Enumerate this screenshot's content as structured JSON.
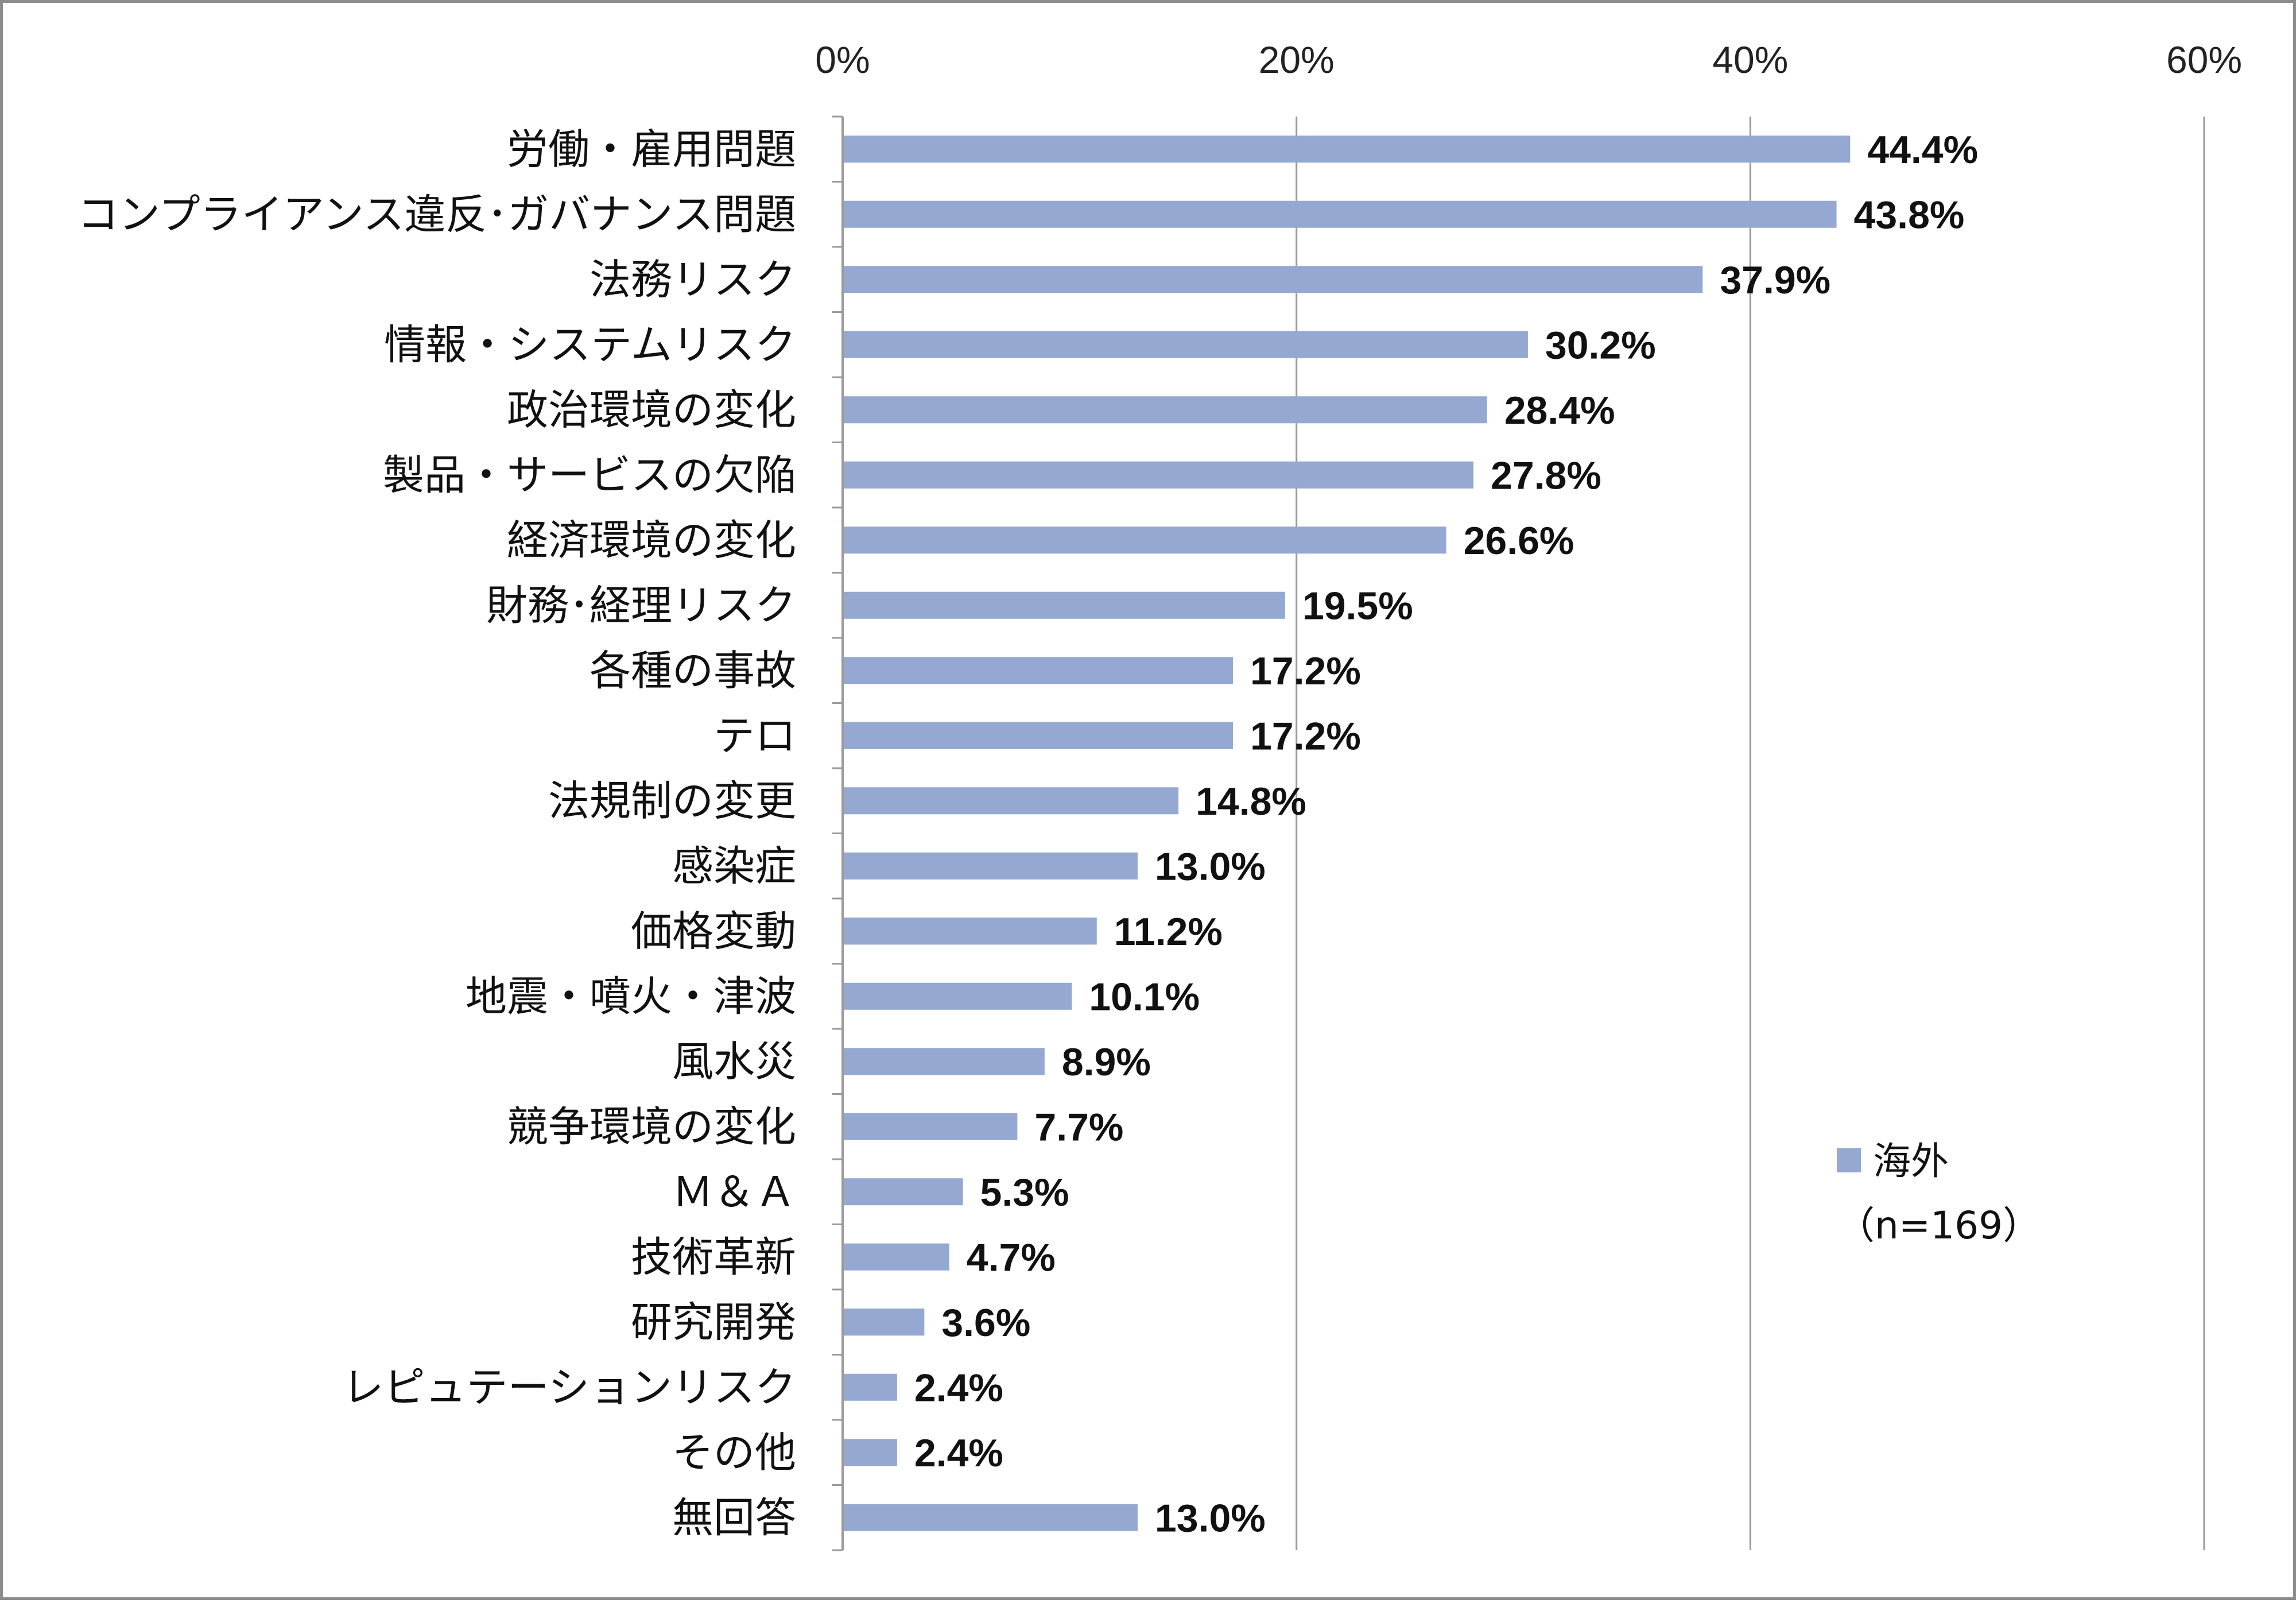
{
  "chart_data": {
    "type": "bar",
    "orientation": "horizontal",
    "categories": [
      "労働・雇用問題",
      "コンプライアンス違反･ガバナンス問題",
      "法務リスク",
      "情報・システムリスク",
      "政治環境の変化",
      "製品・サービスの欠陥",
      "経済環境の変化",
      "財務･経理リスク",
      "各種の事故",
      "テロ",
      "法規制の変更",
      "感染症",
      "価格変動",
      "地震・噴火・津波",
      "風水災",
      "競争環境の変化",
      "Ｍ＆Ａ",
      "技術革新",
      "研究開発",
      "レピュテーションリスク",
      "その他",
      "無回答"
    ],
    "series": [
      {
        "name": "海外",
        "color": "#94a8d2",
        "values": [
          44.4,
          43.8,
          37.9,
          30.2,
          28.4,
          27.8,
          26.6,
          19.5,
          17.2,
          17.2,
          14.8,
          13.0,
          11.2,
          10.1,
          8.9,
          7.7,
          5.3,
          4.7,
          3.6,
          2.4,
          2.4,
          13.0
        ],
        "labels": [
          "44.4%",
          "43.8%",
          "37.9%",
          "30.2%",
          "28.4%",
          "27.8%",
          "26.6%",
          "19.5%",
          "17.2%",
          "17.2%",
          "14.8%",
          "13.0%",
          "11.2%",
          "10.1%",
          "8.9%",
          "7.7%",
          "5.3%",
          "4.7%",
          "3.6%",
          "2.4%",
          "2.4%",
          "13.0%"
        ]
      }
    ],
    "xlim": [
      0,
      60
    ],
    "xticks": [
      "0%",
      "20%",
      "40%",
      "60%"
    ],
    "x_axis_position": "top",
    "grid": true,
    "legend_position": "right",
    "legend": {
      "label": "海外",
      "note": "（n=169）"
    },
    "colors": {
      "bar": "#94a8d2",
      "grid": "#9a9a9a",
      "frame": "#8c8c8c"
    }
  }
}
